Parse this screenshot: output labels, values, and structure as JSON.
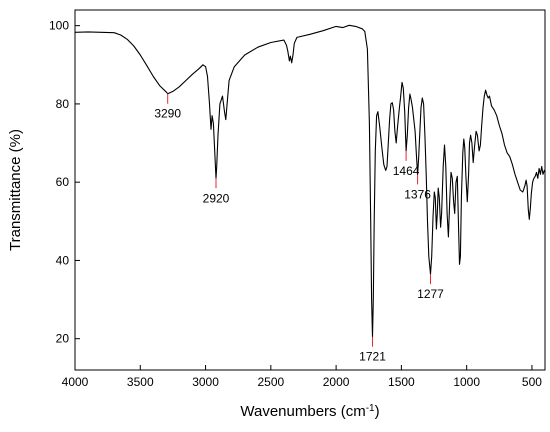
{
  "chart_data": {
    "type": "line",
    "title": "",
    "xlabel": "Wavenumbers (cm",
    "xlabel_sup": "-1",
    "xlabel_close": ")",
    "ylabel": "Transmittance (%)",
    "x_reversed": true,
    "xlim": [
      4000,
      400
    ],
    "ylim": [
      12,
      104
    ],
    "grid": false,
    "x_ticks": [
      4000,
      3500,
      3000,
      2500,
      2000,
      1500,
      1000,
      500
    ],
    "y_ticks": [
      20,
      40,
      60,
      80,
      100
    ],
    "line_color": "#000000",
    "marker_color": "#e8262b",
    "series": [
      {
        "points": [
          [
            4000,
            98.3
          ],
          [
            3900,
            98.4
          ],
          [
            3800,
            98.3
          ],
          [
            3700,
            98.2
          ],
          [
            3650,
            97.6
          ],
          [
            3600,
            96.5
          ],
          [
            3550,
            94.8
          ],
          [
            3500,
            92.5
          ],
          [
            3450,
            89.8
          ],
          [
            3400,
            87.0
          ],
          [
            3350,
            84.6
          ],
          [
            3300,
            83.0
          ],
          [
            3290,
            82.6
          ],
          [
            3250,
            83.2
          ],
          [
            3200,
            84.4
          ],
          [
            3150,
            86.0
          ],
          [
            3100,
            87.6
          ],
          [
            3050,
            89.0
          ],
          [
            3020,
            90.0
          ],
          [
            3000,
            89.5
          ],
          [
            2985,
            87.0
          ],
          [
            2970,
            80.0
          ],
          [
            2958,
            73.5
          ],
          [
            2950,
            77.0
          ],
          [
            2940,
            75.0
          ],
          [
            2930,
            68.0
          ],
          [
            2920,
            61.0
          ],
          [
            2915,
            64.0
          ],
          [
            2905,
            72.0
          ],
          [
            2890,
            80.0
          ],
          [
            2870,
            82.0
          ],
          [
            2855,
            78.0
          ],
          [
            2845,
            76.0
          ],
          [
            2835,
            80.0
          ],
          [
            2820,
            86.0
          ],
          [
            2780,
            89.5
          ],
          [
            2700,
            92.5
          ],
          [
            2600,
            94.5
          ],
          [
            2500,
            95.7
          ],
          [
            2400,
            96.3
          ],
          [
            2380,
            95.0
          ],
          [
            2370,
            93.5
          ],
          [
            2358,
            91.0
          ],
          [
            2350,
            92.2
          ],
          [
            2340,
            90.5
          ],
          [
            2330,
            92.5
          ],
          [
            2320,
            95.5
          ],
          [
            2300,
            97.0
          ],
          [
            2200,
            97.8
          ],
          [
            2100,
            98.7
          ],
          [
            2000,
            99.8
          ],
          [
            1950,
            99.5
          ],
          [
            1900,
            100.1
          ],
          [
            1850,
            99.8
          ],
          [
            1800,
            99.2
          ],
          [
            1780,
            98.5
          ],
          [
            1760,
            94.0
          ],
          [
            1745,
            75.0
          ],
          [
            1735,
            50.0
          ],
          [
            1728,
            30.0
          ],
          [
            1721,
            20.5
          ],
          [
            1715,
            30.0
          ],
          [
            1708,
            50.0
          ],
          [
            1700,
            68.0
          ],
          [
            1690,
            77.0
          ],
          [
            1680,
            78.0
          ],
          [
            1665,
            74.0
          ],
          [
            1650,
            69.0
          ],
          [
            1635,
            64.5
          ],
          [
            1620,
            63.0
          ],
          [
            1610,
            64.0
          ],
          [
            1600,
            70.0
          ],
          [
            1590,
            76.0
          ],
          [
            1580,
            80.0
          ],
          [
            1570,
            80.3
          ],
          [
            1560,
            78.5
          ],
          [
            1550,
            73.0
          ],
          [
            1540,
            70.0
          ],
          [
            1530,
            74.0
          ],
          [
            1515,
            79.0
          ],
          [
            1505,
            82.0
          ],
          [
            1495,
            85.5
          ],
          [
            1485,
            84.0
          ],
          [
            1475,
            78.0
          ],
          [
            1464,
            68.0
          ],
          [
            1455,
            72.0
          ],
          [
            1445,
            79.0
          ],
          [
            1435,
            82.5
          ],
          [
            1425,
            81.0
          ],
          [
            1415,
            79.0
          ],
          [
            1405,
            76.0
          ],
          [
            1395,
            73.0
          ],
          [
            1385,
            67.0
          ],
          [
            1376,
            62.0
          ],
          [
            1368,
            66.0
          ],
          [
            1360,
            72.0
          ],
          [
            1350,
            79.0
          ],
          [
            1340,
            81.5
          ],
          [
            1330,
            80.0
          ],
          [
            1320,
            72.0
          ],
          [
            1310,
            62.0
          ],
          [
            1300,
            50.0
          ],
          [
            1290,
            41.0
          ],
          [
            1277,
            36.5
          ],
          [
            1268,
            41.0
          ],
          [
            1258,
            51.0
          ],
          [
            1248,
            57.5
          ],
          [
            1240,
            56.0
          ],
          [
            1232,
            48.0
          ],
          [
            1225,
            52.0
          ],
          [
            1218,
            58.5
          ],
          [
            1210,
            56.0
          ],
          [
            1200,
            48.5
          ],
          [
            1192,
            52.0
          ],
          [
            1180,
            64.0
          ],
          [
            1170,
            69.5
          ],
          [
            1160,
            64.0
          ],
          [
            1150,
            52.0
          ],
          [
            1140,
            46.0
          ],
          [
            1130,
            55.0
          ],
          [
            1120,
            62.5
          ],
          [
            1110,
            61.0
          ],
          [
            1100,
            55.0
          ],
          [
            1092,
            52.0
          ],
          [
            1082,
            60.0
          ],
          [
            1072,
            61.5
          ],
          [
            1062,
            48.0
          ],
          [
            1055,
            39.0
          ],
          [
            1048,
            41.0
          ],
          [
            1040,
            56.0
          ],
          [
            1030,
            67.5
          ],
          [
            1022,
            71.0
          ],
          [
            1015,
            69.0
          ],
          [
            1005,
            61.0
          ],
          [
            995,
            55.0
          ],
          [
            985,
            62.0
          ],
          [
            978,
            70.0
          ],
          [
            970,
            72.0
          ],
          [
            960,
            70.0
          ],
          [
            950,
            65.0
          ],
          [
            940,
            69.0
          ],
          [
            928,
            73.0
          ],
          [
            918,
            72.0
          ],
          [
            905,
            68.0
          ],
          [
            895,
            69.5
          ],
          [
            885,
            74.5
          ],
          [
            875,
            79.0
          ],
          [
            865,
            82.0
          ],
          [
            855,
            83.5
          ],
          [
            845,
            82.3
          ],
          [
            835,
            81.5
          ],
          [
            825,
            82.0
          ],
          [
            810,
            79.5
          ],
          [
            790,
            78.5
          ],
          [
            770,
            77.0
          ],
          [
            750,
            74.5
          ],
          [
            730,
            72.5
          ],
          [
            710,
            69.5
          ],
          [
            690,
            67.5
          ],
          [
            670,
            66.5
          ],
          [
            650,
            64.5
          ],
          [
            630,
            62.0
          ],
          [
            610,
            60.0
          ],
          [
            590,
            58.0
          ],
          [
            570,
            57.5
          ],
          [
            555,
            59.0
          ],
          [
            545,
            60.5
          ],
          [
            537,
            59.0
          ],
          [
            528,
            53.0
          ],
          [
            520,
            50.5
          ],
          [
            512,
            53.5
          ],
          [
            505,
            57.0
          ],
          [
            495,
            60.0
          ],
          [
            485,
            61.0
          ],
          [
            475,
            61.5
          ],
          [
            465,
            62.5
          ],
          [
            455,
            61.0
          ],
          [
            445,
            63.5
          ],
          [
            435,
            62.0
          ],
          [
            425,
            64.0
          ],
          [
            415,
            62.0
          ],
          [
            405,
            63.0
          ],
          [
            400,
            62.5
          ]
        ]
      }
    ],
    "annotations": [
      {
        "x": 3290,
        "y": 82.6,
        "label": "3290"
      },
      {
        "x": 2920,
        "y": 61.0,
        "label": "2920"
      },
      {
        "x": 1721,
        "y": 20.5,
        "label": "1721"
      },
      {
        "x": 1464,
        "y": 68.0,
        "label": "1464"
      },
      {
        "x": 1376,
        "y": 62.0,
        "label": "1376"
      },
      {
        "x": 1277,
        "y": 36.5,
        "label": "1277"
      }
    ]
  }
}
